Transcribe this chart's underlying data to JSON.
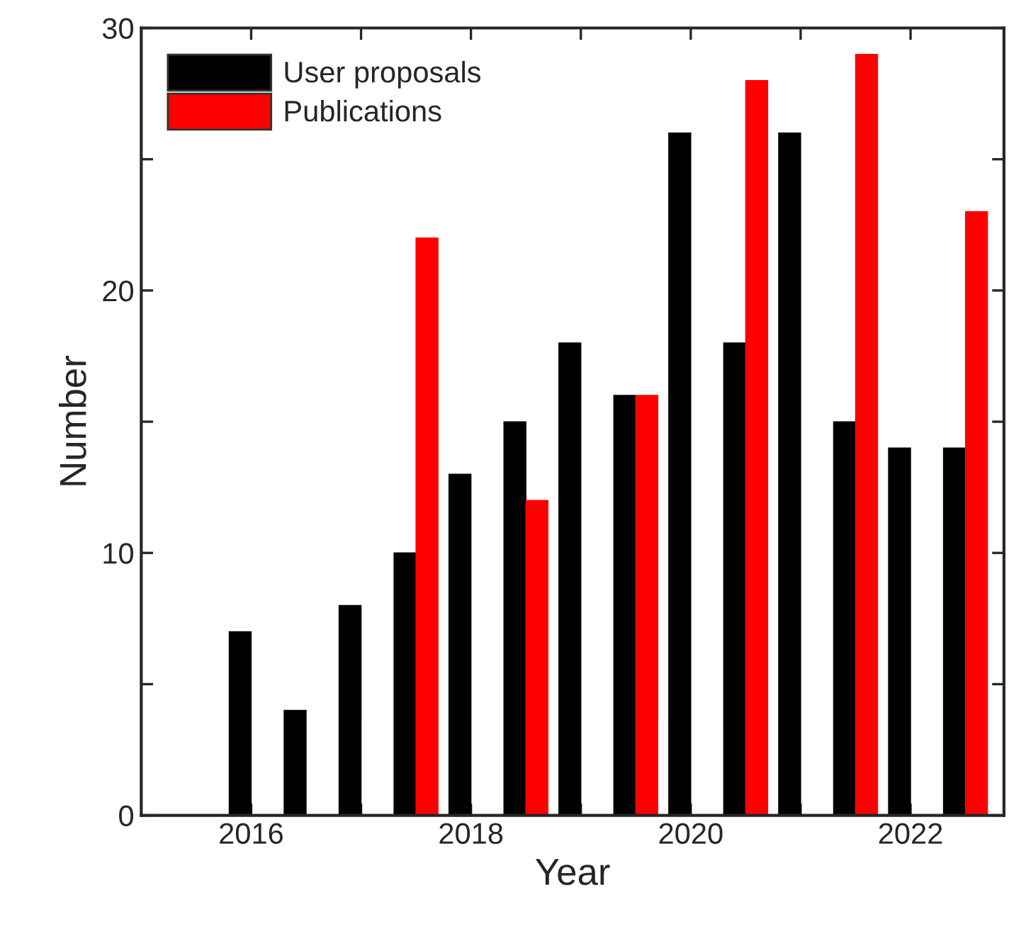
{
  "chart_data": {
    "type": "bar",
    "xlabel": "Year",
    "ylabel": "Number",
    "x": [
      2016,
      2016.5,
      2017,
      2017.5,
      2018,
      2018.5,
      2019,
      2019.5,
      2020,
      2020.5,
      2021,
      2021.5,
      2022,
      2022.5
    ],
    "series": [
      {
        "name": "User proposals",
        "color": "#000000",
        "values": [
          7,
          4,
          8,
          10,
          13,
          15,
          18,
          16,
          26,
          18,
          26,
          15,
          14,
          14
        ]
      },
      {
        "name": "Publications",
        "color": "#ff0000",
        "values": [
          null,
          null,
          null,
          22,
          null,
          12,
          null,
          16,
          null,
          28,
          null,
          29,
          null,
          23
        ]
      }
    ],
    "xlim": [
      2015,
      2022.85
    ],
    "xticks": [
      2016,
      {
        "value": 2017,
        "label": null
      },
      2018,
      {
        "value": 2019,
        "label": null
      },
      2020,
      {
        "value": 2021,
        "label": null
      },
      2022
    ],
    "ylim": [
      0,
      30
    ],
    "yticks": [
      0,
      {
        "value": 5,
        "label": null
      },
      10,
      {
        "value": 15,
        "label": null
      },
      20,
      {
        "value": 25,
        "label": null
      },
      30
    ],
    "grid": false,
    "legend": "top left"
  }
}
